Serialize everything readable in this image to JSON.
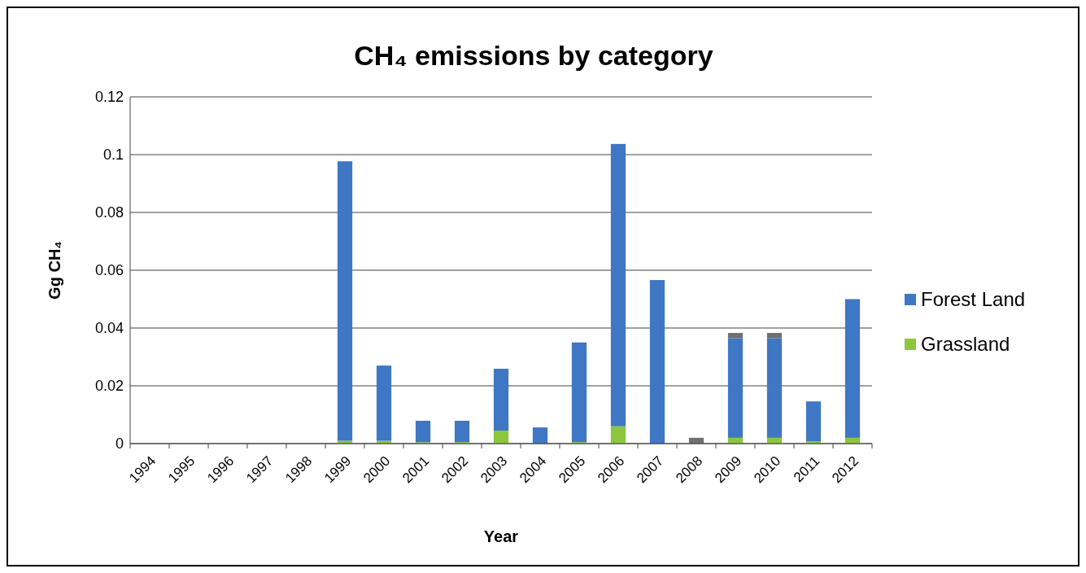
{
  "chart_data": {
    "type": "bar",
    "title": "CH₄ emissions by category",
    "xlabel": "Year",
    "ylabel": "Gg CH₄",
    "categories": [
      "1994",
      "1995",
      "1996",
      "1997",
      "1998",
      "1999",
      "2000",
      "2001",
      "2002",
      "2003",
      "2004",
      "2005",
      "2006",
      "2007",
      "2008",
      "2009",
      "2010",
      "2011",
      "2012"
    ],
    "stacked": true,
    "series": [
      {
        "name": "Grassland",
        "color": "#8cc63f",
        "values": [
          0,
          0,
          0,
          0,
          0,
          0.001,
          0.001,
          0.0005,
          0.0005,
          0.0045,
          0,
          0.0005,
          0.006,
          0,
          0,
          0.002,
          0.002,
          0.0008,
          0.002
        ]
      },
      {
        "name": "Forest Land",
        "color": "#3f77c4",
        "values": [
          0,
          0,
          0,
          0,
          0,
          0.0967,
          0.026,
          0.0074,
          0.0074,
          0.0214,
          0.0056,
          0.0345,
          0.0977,
          0.0566,
          0,
          0.0345,
          0.0345,
          0.0138,
          0.048
        ]
      },
      {
        "color": "#707070",
        "values": [
          0,
          0,
          0,
          0,
          0,
          0,
          0,
          0,
          0,
          0,
          0,
          0,
          0,
          0,
          0.002,
          0.0018,
          0.0018,
          0,
          0
        ]
      }
    ],
    "ylim": [
      0,
      0.12
    ],
    "yticks": [
      0,
      0.02,
      0.04,
      0.06,
      0.08,
      0.1,
      0.12
    ],
    "grid": "y",
    "legend": "right"
  }
}
